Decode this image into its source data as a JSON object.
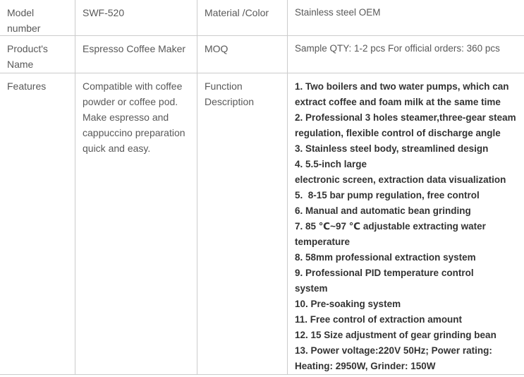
{
  "colors": {
    "background": "#ffffff",
    "border": "#cccccc",
    "label_text": "#595959",
    "value_text": "#595959",
    "feature_list_text": "#333333"
  },
  "spec_table": {
    "model_number": {
      "label": "Model number",
      "value": "SWF-520"
    },
    "material_color": {
      "label": "Material /Color",
      "value": "Stainless steel OEM"
    },
    "product_name": {
      "label": "Product's Name",
      "value": "Espresso Coffee Maker"
    },
    "moq": {
      "label": "MOQ",
      "value": "Sample QTY: 1-2 pcs For official orders: 360 pcs"
    },
    "features": {
      "label": "Features",
      "value": "Compatible with coffee powder or coffee pod. Make espresso and cappuccino preparation quick and easy."
    },
    "function_description": {
      "label": "Function Description",
      "lines": [
        "1. Two boilers and two water pumps, which can",
        "extract coffee and foam milk at the same time",
        "2. Professional 3 holes steamer,three-gear steam",
        "regulation, flexible control of discharge angle",
        "3. Stainless steel body, streamlined design",
        "4. 5.5-inch large",
        "electronic screen, extraction data visualization",
        "5.  8-15 bar pump regulation, free control",
        "6. Manual and automatic bean grinding",
        "7. 85 ℃~97 ℃ adjustable extracting water",
        "temperature",
        "8. 58mm professional extraction system",
        "9. Professional PID temperature control",
        "system",
        "10. Pre-soaking system",
        "11. Free control of extraction amount",
        "12. 15 Size adjustment of gear grinding bean",
        "13. Power voltage:220V 50Hz; Power rating:",
        "Heating: 2950W, Grinder: 150W"
      ]
    }
  }
}
